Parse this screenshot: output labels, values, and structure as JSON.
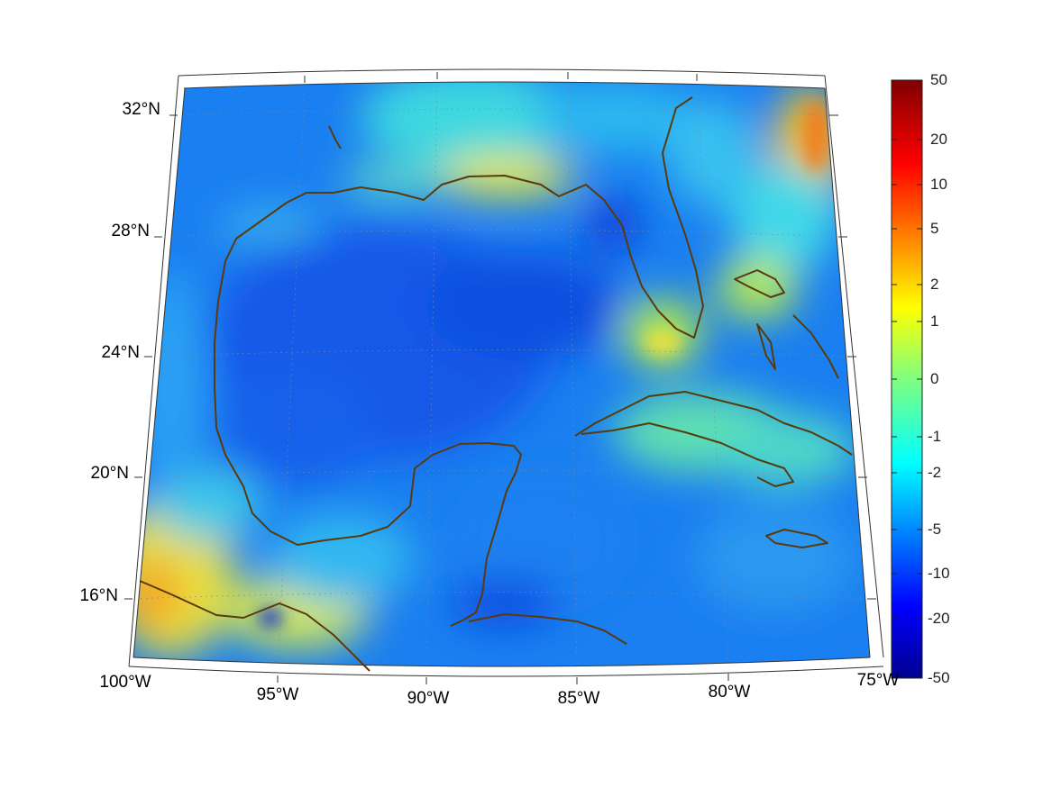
{
  "map": {
    "projection": "conic",
    "lat_labels": [
      "32°N",
      "28°N",
      "24°N",
      "20°N",
      "16°N"
    ],
    "lat_values": [
      32,
      28,
      24,
      20,
      16
    ],
    "lon_labels": [
      "100°W",
      "95°W",
      "90°W",
      "85°W",
      "80°W",
      "75°W"
    ],
    "lon_values": [
      -100,
      -95,
      -90,
      -85,
      -80,
      -75
    ],
    "lat_range": [
      14,
      33
    ],
    "lon_range": [
      -100,
      -75
    ],
    "grid": true,
    "coastline_color": "#5a3a0a"
  },
  "colorbar": {
    "tick_labels": [
      "50",
      "20",
      "10",
      "5",
      "2",
      "1",
      "0",
      "-1",
      "-2",
      "-5",
      "-10",
      "-20",
      "-50"
    ],
    "colormap": "jet",
    "placement": "right"
  }
}
